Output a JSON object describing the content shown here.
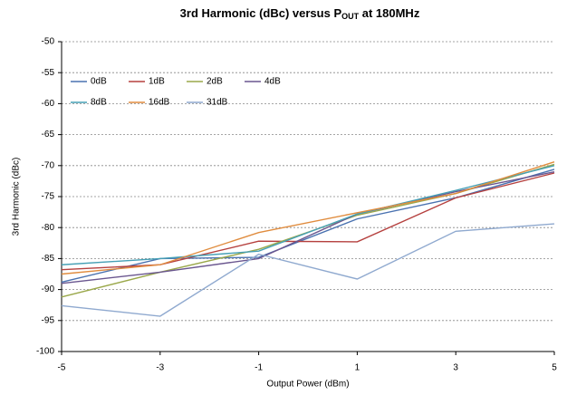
{
  "chart_data": {
    "type": "line",
    "title": [
      "3rd Harmonic (dBc) versus P",
      "OUT",
      " at 180MHz"
    ],
    "x_label": "Output Power (dBm)",
    "y_label": "3rd Harmonic (dBc)",
    "x": [
      -5,
      -3,
      -1,
      1,
      3,
      5
    ],
    "xlim": [
      -5,
      5
    ],
    "xticks": [
      -5,
      -3,
      -1,
      1,
      3,
      5
    ],
    "ylim": [
      -100,
      -50
    ],
    "yticks": [
      -100,
      -95,
      -90,
      -85,
      -80,
      -75,
      -70,
      -65,
      -60,
      -55,
      -50
    ],
    "grid": true,
    "legend": "upper left",
    "series": [
      {
        "name": "0dB",
        "color": "#4a72b0",
        "values": [
          -88.8,
          -85,
          -84.8,
          -78.6,
          -75.2,
          -70.6
        ]
      },
      {
        "name": "1dB",
        "color": "#b5403e",
        "values": [
          -86.8,
          -86,
          -82.2,
          -82.3,
          -75.2,
          -71.2
        ]
      },
      {
        "name": "2dB",
        "color": "#9aa84a",
        "values": [
          -91.2,
          -87.2,
          -83.5,
          -78,
          -74.5,
          -69.8
        ]
      },
      {
        "name": "4dB",
        "color": "#6a568f",
        "values": [
          -89,
          -87.2,
          -85,
          -77.8,
          -74.2,
          -71
        ]
      },
      {
        "name": "8dB",
        "color": "#46a0b5",
        "values": [
          -86,
          -85,
          -83.8,
          -77.8,
          -74,
          -70
        ]
      },
      {
        "name": "16dB",
        "color": "#e08c3e",
        "values": [
          -87.5,
          -86,
          -80.8,
          -77.6,
          -74.5,
          -69.4
        ]
      },
      {
        "name": "31dB",
        "color": "#8fa9cf",
        "values": [
          -92.6,
          -94.3,
          -84.3,
          -88.3,
          -80.6,
          -79.4
        ]
      }
    ]
  }
}
